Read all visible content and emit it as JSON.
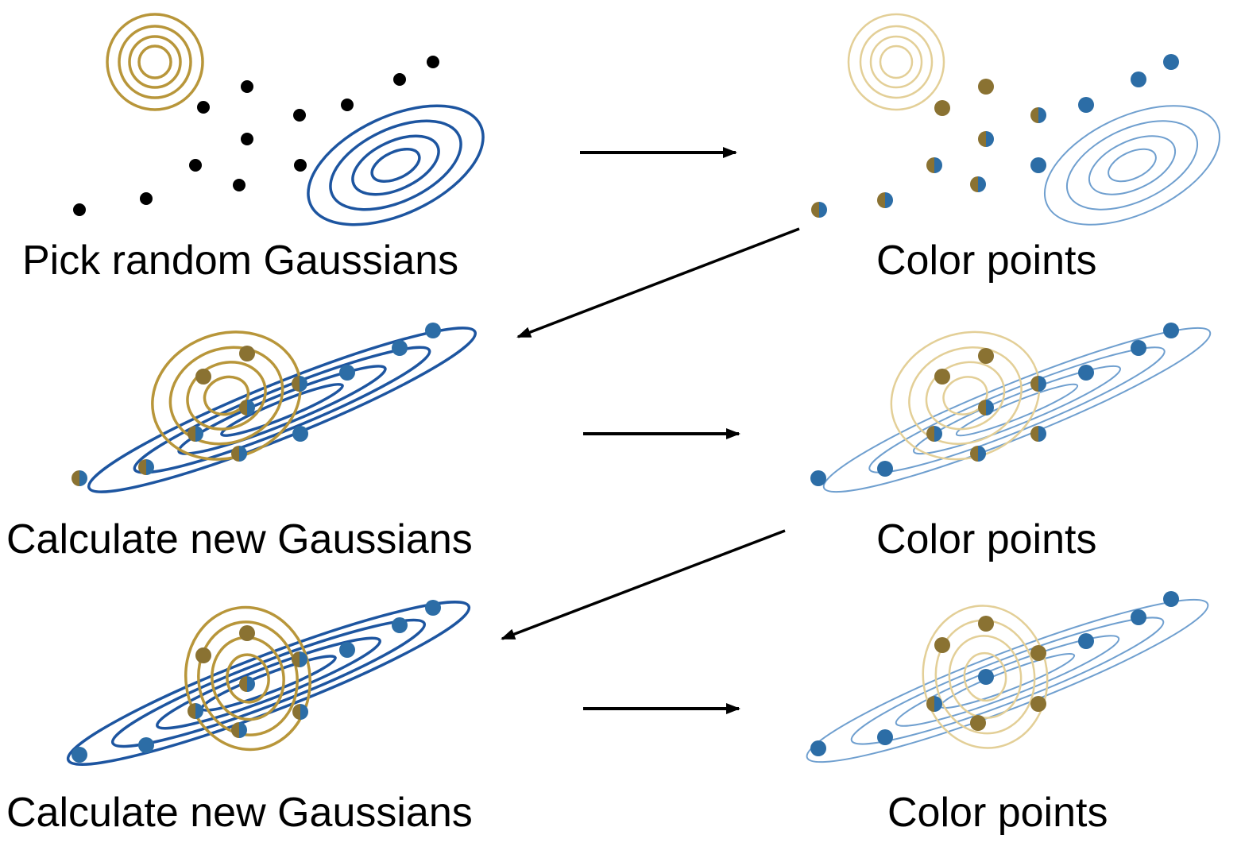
{
  "colors": {
    "gold": "#b8963a",
    "gold_light": "#e3cf97",
    "gold_point": "#8a7232",
    "blue": "#1d55a0",
    "blue_light": "#6f9fcf",
    "blue_point": "#2c6da6",
    "black": "#000000"
  },
  "captions": {
    "panel_1": "Pick random Gaussians",
    "panel_2": "Color points",
    "panel_3": "Calculate new Gaussians",
    "panel_4": "Color points",
    "panel_5": "Calculate new Gaussians",
    "panel_6": "Color points"
  },
  "icons": {
    "right_arrow": "right-arrow-icon",
    "diagonal_arrow": "down-left-arrow-icon"
  }
}
